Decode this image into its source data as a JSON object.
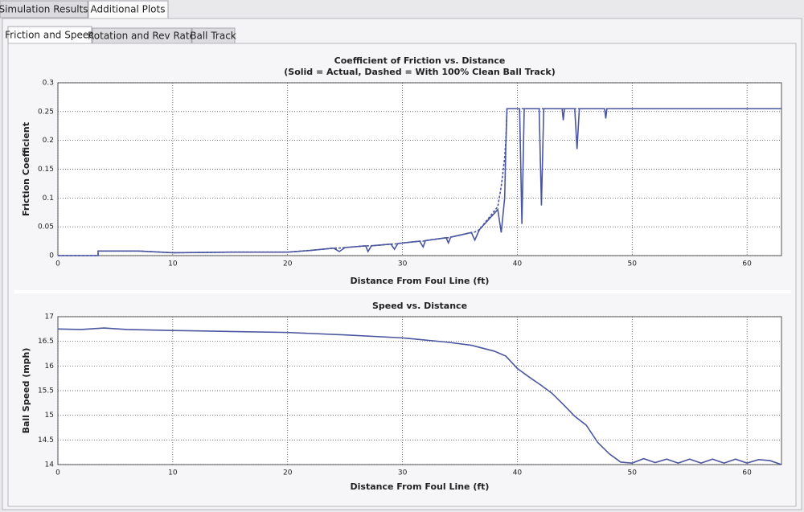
{
  "tabs": [
    "Simulation Results",
    "Additional Plots"
  ],
  "subtabs": [
    "Friction and Speed",
    "Rotation and Rev Rate",
    "Ball Track"
  ],
  "chart_data": [
    {
      "type": "line",
      "title": "Coefficient of Friction vs. Distance",
      "subtitle": "(Solid = Actual, Dashed = With 100% Clean Ball Track)",
      "xlabel": "Distance From Foul Line (ft)",
      "ylabel": "Friction Coefficient",
      "xlim": [
        0,
        63
      ],
      "xticks": [
        0,
        10,
        20,
        30,
        40,
        50,
        60
      ],
      "ylim": [
        0,
        0.3
      ],
      "yticks": [
        0,
        0.05,
        0.1,
        0.15,
        0.2,
        0.25,
        0.3
      ],
      "grid": true,
      "x": [
        0,
        3.5,
        3.5,
        7,
        10,
        15,
        20,
        22,
        24,
        24.5,
        25,
        26.8,
        27,
        27.3,
        29,
        29.3,
        29.6,
        31.5,
        31.8,
        32,
        33.8,
        34,
        34.2,
        36,
        36.3,
        36.7,
        38.3,
        38.6,
        38.9,
        39,
        39.1,
        40.2,
        40.4,
        40.6,
        41.9,
        42.1,
        42.3,
        43.9,
        44,
        44.1,
        45,
        45.2,
        45.4,
        47.6,
        47.7,
        47.8,
        63
      ],
      "series": [
        {
          "style": "solid",
          "color": "#4a56a0",
          "values": [
            0,
            0,
            0.008,
            0.008,
            0.005,
            0.006,
            0.006,
            0.009,
            0.013,
            0.007,
            0.014,
            0.017,
            0.007,
            0.017,
            0.02,
            0.011,
            0.021,
            0.025,
            0.015,
            0.026,
            0.031,
            0.022,
            0.032,
            0.04,
            0.027,
            0.045,
            0.08,
            0.04,
            0.1,
            0.19,
            0.255,
            0.255,
            0.055,
            0.255,
            0.255,
            0.087,
            0.255,
            0.255,
            0.235,
            0.255,
            0.255,
            0.185,
            0.255,
            0.255,
            0.238,
            0.255,
            0.255
          ]
        },
        {
          "style": "dashed",
          "color": "#4a56a0",
          "values": [
            0,
            0,
            0.008,
            0.008,
            0.005,
            0.006,
            0.006,
            0.009,
            0.013,
            0.013,
            0.014,
            0.017,
            0.017,
            0.017,
            0.02,
            0.02,
            0.021,
            0.025,
            0.025,
            0.026,
            0.031,
            0.031,
            0.032,
            0.04,
            0.041,
            0.045,
            0.085,
            0.12,
            0.17,
            0.2,
            0.255,
            0.255,
            0.255,
            0.255,
            0.255,
            0.255,
            0.255,
            0.255,
            0.255,
            0.255,
            0.255,
            0.255,
            0.255,
            0.255,
            0.255,
            0.255,
            0.255
          ]
        }
      ]
    },
    {
      "type": "line",
      "title": "Speed vs. Distance",
      "xlabel": "Distance From Foul Line (ft)",
      "ylabel": "Ball Speed (mph)",
      "xlim": [
        0,
        63
      ],
      "xticks": [
        0,
        10,
        20,
        30,
        40,
        50,
        60
      ],
      "ylim": [
        14,
        17
      ],
      "yticks": [
        14,
        14.5,
        15,
        15.5,
        16,
        16.5,
        17
      ],
      "grid": true,
      "x": [
        0,
        2,
        4,
        6,
        10,
        15,
        20,
        25,
        30,
        34,
        36,
        38,
        39,
        40,
        41,
        42,
        43,
        44,
        45,
        46,
        47,
        48,
        49,
        50,
        51,
        52,
        53,
        54,
        55,
        56,
        57,
        58,
        59,
        60,
        61,
        62,
        63
      ],
      "series": [
        {
          "style": "solid",
          "color": "#4a56a0",
          "values": [
            16.75,
            16.74,
            16.77,
            16.74,
            16.72,
            16.7,
            16.68,
            16.63,
            16.57,
            16.48,
            16.42,
            16.3,
            16.2,
            15.95,
            15.78,
            15.62,
            15.45,
            15.22,
            14.98,
            14.8,
            14.45,
            14.22,
            14.05,
            14.03,
            14.12,
            14.04,
            14.11,
            14.03,
            14.11,
            14.03,
            14.11,
            14.03,
            14.11,
            14.03,
            14.1,
            14.08,
            14.0
          ]
        }
      ]
    }
  ]
}
